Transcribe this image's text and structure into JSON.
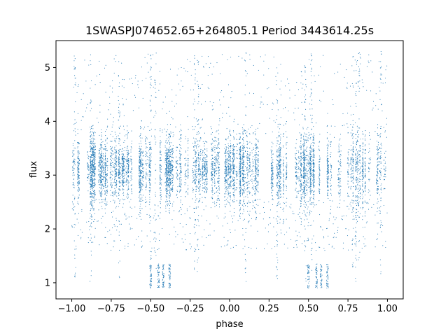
{
  "chart_data": {
    "type": "scatter",
    "title": "1SWASPJ074652.65+264805.1 Period 3443614.25s",
    "xlabel": "phase",
    "ylabel": "flux",
    "xlim": [
      -1.1,
      1.1
    ],
    "ylim": [
      0.7,
      5.5
    ],
    "xticks": [
      -1.0,
      -0.75,
      -0.5,
      -0.25,
      0.0,
      0.25,
      0.5,
      0.75,
      1.0
    ],
    "xtick_labels": [
      "−1.00",
      "−0.75",
      "−0.50",
      "−0.25",
      "0.00",
      "0.25",
      "0.50",
      "0.75",
      "1.00"
    ],
    "yticks": [
      1,
      2,
      3,
      4,
      5
    ],
    "ytick_labels": [
      "1",
      "2",
      "3",
      "4",
      "5"
    ],
    "grid": false,
    "marker_color": "#1f77b4",
    "series_summary": {
      "phase_range": [
        -1.0,
        1.0
      ],
      "typical_flux_range": [
        2.5,
        3.7
      ],
      "median_flux": 3.1,
      "outlier_flux_range": [
        0.9,
        5.3
      ],
      "low_flux_clusters_phase": [
        -0.5,
        -0.45,
        -0.42,
        -0.38,
        0.5,
        0.55,
        0.58,
        0.62
      ],
      "low_flux_cluster_range": [
        0.9,
        1.35
      ]
    }
  }
}
